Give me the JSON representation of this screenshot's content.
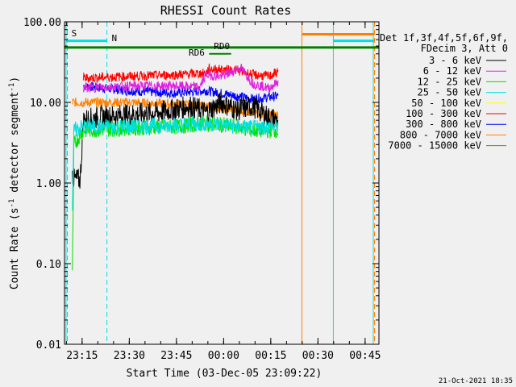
{
  "chart_data": {
    "type": "line",
    "title": "RHESSI Count Rates",
    "xlabel": "Start Time (03-Dec-05 23:09:22)",
    "ylabel_main": "Count Rate (s",
    "ylabel_sup": "-1",
    "ylabel_rest": " detector segment",
    "ylabel_sup2": "-1",
    "ylabel_close": ")",
    "yscale": "log",
    "ylim": [
      0.01,
      100
    ],
    "xlim_minutes_after_start": [
      0,
      100
    ],
    "y_ticks": [
      {
        "value": 0.01,
        "label": "0.01"
      },
      {
        "value": 0.1,
        "label": "0.10"
      },
      {
        "value": 1,
        "label": "1.00"
      },
      {
        "value": 10,
        "label": "10.00"
      },
      {
        "value": 100,
        "label": "100.00"
      }
    ],
    "x_ticks": [
      {
        "value": 5.6,
        "label": "23:15"
      },
      {
        "value": 20.6,
        "label": "23:30"
      },
      {
        "value": 35.6,
        "label": "23:45"
      },
      {
        "value": 50.6,
        "label": "00:00"
      },
      {
        "value": 65.6,
        "label": "00:15"
      },
      {
        "value": 80.6,
        "label": "00:30"
      },
      {
        "value": 95.6,
        "label": "00:45"
      }
    ],
    "legend_header": [
      "Det 1f,3f,4f,5f,6f,9f,",
      "FDecim 3, Att 0"
    ],
    "legend_position": "right",
    "series": [
      {
        "name": "3 - 6 keV",
        "color": "#000000",
        "segments": [
          [
            2.5,
            1.3
          ],
          [
            3,
            1.1
          ],
          [
            5,
            1.1
          ],
          [
            6,
            6
          ],
          [
            10,
            6.5
          ],
          [
            20,
            7
          ],
          [
            30,
            7.5
          ],
          [
            40,
            9
          ],
          [
            45,
            7.5
          ],
          [
            50,
            10
          ],
          [
            55,
            8
          ],
          [
            60,
            9
          ],
          [
            65,
            6.5
          ],
          [
            68,
            6
          ]
        ]
      },
      {
        "name": "6 - 12 keV",
        "color": "#e020e0",
        "segments": [
          [
            6,
            15
          ],
          [
            20,
            16
          ],
          [
            35,
            16
          ],
          [
            43,
            15.5
          ],
          [
            45,
            22
          ],
          [
            50,
            21
          ],
          [
            56,
            27
          ],
          [
            60,
            17
          ],
          [
            65,
            15
          ],
          [
            68,
            18
          ]
        ]
      },
      {
        "name": "12 - 25 keV",
        "color": "#00e000",
        "segments": [
          [
            2.5,
            0.07
          ],
          [
            3,
            3
          ],
          [
            6,
            4.5
          ],
          [
            20,
            4.8
          ],
          [
            35,
            5
          ],
          [
            45,
            5.5
          ],
          [
            55,
            5
          ],
          [
            60,
            4.5
          ],
          [
            68,
            4.5
          ]
        ]
      },
      {
        "name": "25 - 50 keV",
        "color": "#00e0e0",
        "segments": [
          [
            2.5,
            0.5
          ],
          [
            3,
            4.5
          ],
          [
            6,
            5
          ],
          [
            20,
            5
          ],
          [
            35,
            5.2
          ],
          [
            45,
            5.5
          ],
          [
            55,
            5
          ],
          [
            60,
            4.8
          ],
          [
            68,
            5
          ]
        ]
      },
      {
        "name": "50 - 100 keV",
        "color": "#ffff00",
        "segments": []
      },
      {
        "name": "100 - 300 keV",
        "color": "#ff0000",
        "segments": [
          [
            6,
            20
          ],
          [
            20,
            21
          ],
          [
            35,
            22
          ],
          [
            45,
            23
          ],
          [
            46,
            26
          ],
          [
            55,
            25
          ],
          [
            60,
            22
          ],
          [
            65,
            21
          ],
          [
            68,
            24
          ]
        ]
      },
      {
        "name": "300 - 800 keV",
        "color": "#0000ff",
        "segments": [
          [
            6,
            16
          ],
          [
            20,
            14
          ],
          [
            35,
            13
          ],
          [
            45,
            14
          ],
          [
            55,
            12
          ],
          [
            60,
            11
          ],
          [
            68,
            12
          ]
        ]
      },
      {
        "name": "800 - 7000 keV",
        "color": "#ff8000",
        "segments": [
          [
            2.5,
            10
          ],
          [
            6,
            10
          ],
          [
            20,
            10
          ],
          [
            35,
            9.5
          ],
          [
            45,
            9
          ],
          [
            55,
            8
          ],
          [
            60,
            7.5
          ],
          [
            68,
            7
          ]
        ]
      },
      {
        "name": "7000 - 15000 keV",
        "color": "#808000",
        "segments": [
          [
            6,
            10.5
          ],
          [
            20,
            11
          ],
          [
            35,
            11.5
          ],
          [
            45,
            11
          ],
          [
            55,
            10
          ],
          [
            60,
            9.5
          ],
          [
            68,
            10
          ]
        ]
      }
    ],
    "annotations": {
      "S_label": "S",
      "N_label": "N",
      "RD0_label": "RD0",
      "RD6_label": "RD6"
    },
    "footer_date": "21-Oct-2021 18:35"
  }
}
